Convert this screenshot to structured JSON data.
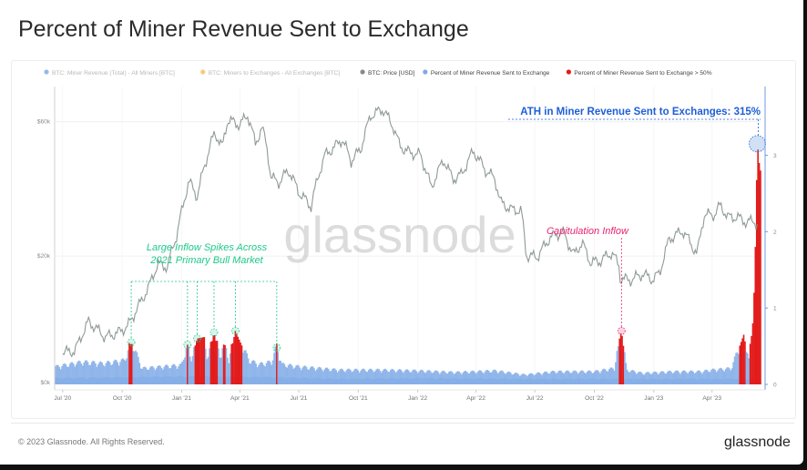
{
  "title": "Percent of Miner Revenue Sent to Exchange",
  "footer": {
    "copyright": "© 2023 Glassnode. All Rights Reserved.",
    "brand": "glassnode"
  },
  "watermark": "glassnode",
  "colors": {
    "price": "#8e9a98",
    "miner_revenue": "#5b8fd9",
    "percent_bar": "#85aee8",
    "percent_high": "#e21b1b",
    "legend_orange": "#f5a623",
    "green_annotation": "#1ec98a",
    "pink_annotation": "#e8226e",
    "ath_annotation": "#1f5fd6"
  },
  "legend": [
    {
      "label": "BTC: Miner Revenue (Total) - All Miners [BTC]",
      "color": "#4a90d9",
      "faded": true
    },
    {
      "label": "BTC: Miners to Exchanges - All Exchanges [BTC]",
      "color": "#f5a623",
      "faded": true
    },
    {
      "label": "BTC: Price [USD]",
      "color": "#8a8a8a",
      "faded": false
    },
    {
      "label": "Percent of Miner Revenue Sent to Exchange",
      "color": "#7fa8e6",
      "faded": false
    },
    {
      "label": "Percent of Miner Revenue Sent to Exchange > 50%",
      "color": "#e21b1b",
      "faded": false
    }
  ],
  "annotations": {
    "bull": [
      "Large Inflow Spikes Across",
      "2021 Primary Bull Market"
    ],
    "capitulation": "Capitulation Inflow",
    "ath": "ATH in Miner Revenue Sent to Exchanges: 315%"
  },
  "chart_data": {
    "type": "line",
    "x_tick_labels": [
      "Jul '20",
      "Oct '20",
      "Jan '21",
      "Apr '21",
      "Jul '21",
      "Oct '21",
      "Jan '22",
      "Apr '22",
      "Jul '22",
      "Oct '22",
      "Jan '23",
      "Apr '23"
    ],
    "x_tick_dates": [
      "2020-07-01",
      "2020-10-01",
      "2021-01-01",
      "2021-04-01",
      "2021-07-01",
      "2021-10-01",
      "2022-01-01",
      "2022-04-01",
      "2022-07-01",
      "2022-10-01",
      "2023-01-01",
      "2023-04-01"
    ],
    "x_range": [
      "2020-06-20",
      "2023-06-15"
    ],
    "left_axis": {
      "tick_labels": [
        "$0k",
        "$20k",
        "$60k"
      ],
      "tick_values": [
        0,
        20000,
        60000
      ],
      "scale": "log"
    },
    "right_axis": {
      "tick_labels": [
        "0",
        "1",
        "2",
        "3"
      ],
      "tick_values": [
        0,
        1,
        2,
        3
      ],
      "range": [
        0,
        3.9
      ]
    },
    "price_series": {
      "name": "BTC: Price [USD]",
      "dates": [
        "2020-07-01",
        "2020-07-20",
        "2020-08-10",
        "2020-09-05",
        "2020-09-25",
        "2020-10-10",
        "2020-10-25",
        "2020-11-10",
        "2020-11-25",
        "2020-12-10",
        "2020-12-25",
        "2021-01-05",
        "2021-01-12",
        "2021-01-25",
        "2021-02-08",
        "2021-02-21",
        "2021-03-05",
        "2021-03-13",
        "2021-04-01",
        "2021-04-13",
        "2021-04-25",
        "2021-05-05",
        "2021-05-12",
        "2021-05-19",
        "2021-06-01",
        "2021-06-15",
        "2021-07-01",
        "2021-07-20",
        "2021-08-10",
        "2021-08-25",
        "2021-09-06",
        "2021-09-20",
        "2021-10-05",
        "2021-10-20",
        "2021-11-08",
        "2021-11-25",
        "2021-12-04",
        "2021-12-20",
        "2022-01-05",
        "2022-01-22",
        "2022-02-10",
        "2022-02-24",
        "2022-03-10",
        "2022-03-28",
        "2022-04-15",
        "2022-04-30",
        "2022-05-09",
        "2022-05-25",
        "2022-06-10",
        "2022-06-18",
        "2022-07-05",
        "2022-07-25",
        "2022-08-13",
        "2022-08-30",
        "2022-09-12",
        "2022-09-25",
        "2022-10-10",
        "2022-10-28",
        "2022-11-08",
        "2022-11-10",
        "2022-11-25",
        "2022-12-15",
        "2022-12-30",
        "2023-01-10",
        "2023-01-25",
        "2023-02-15",
        "2023-03-09",
        "2023-03-20",
        "2023-04-05",
        "2023-04-14",
        "2023-04-25",
        "2023-05-10",
        "2023-05-25",
        "2023-06-05",
        "2023-06-10"
      ],
      "values": [
        9100,
        9200,
        11700,
        10300,
        10700,
        11300,
        13100,
        15300,
        18700,
        18300,
        24000,
        31500,
        37000,
        32500,
        44000,
        55000,
        48500,
        61000,
        58500,
        63500,
        50000,
        57000,
        50000,
        38000,
        36500,
        40500,
        33700,
        30000,
        45500,
        48700,
        52000,
        43500,
        48000,
        63000,
        66500,
        57000,
        49200,
        46500,
        45800,
        35000,
        44000,
        37500,
        39000,
        47300,
        40500,
        37700,
        31000,
        29300,
        29000,
        20000,
        19900,
        23300,
        24400,
        20200,
        22300,
        19000,
        19200,
        20600,
        18500,
        16700,
        16400,
        17300,
        16500,
        17400,
        23000,
        24600,
        20200,
        28000,
        28100,
        30400,
        27500,
        27500,
        26300,
        26800,
        25700
      ]
    },
    "percent_series": {
      "name": "Percent of Miner Revenue Sent to Exchange",
      "threshold": 0.5,
      "dates": [
        "2020-06-20",
        "2020-08-01",
        "2020-09-01",
        "2020-10-05",
        "2020-10-15",
        "2020-11-01",
        "2020-12-01",
        "2021-01-01",
        "2021-01-10",
        "2021-01-15",
        "2021-01-25",
        "2021-02-05",
        "2021-02-10",
        "2021-02-20",
        "2021-03-01",
        "2021-03-08",
        "2021-03-15",
        "2021-03-25",
        "2021-04-15",
        "2021-05-01",
        "2021-05-20",
        "2021-05-28",
        "2021-06-05",
        "2021-07-01",
        "2021-09-01",
        "2021-11-01",
        "2022-01-01",
        "2022-03-01",
        "2022-05-01",
        "2022-06-15",
        "2022-08-01",
        "2022-10-01",
        "2022-11-01",
        "2022-11-09",
        "2022-11-12",
        "2022-11-20",
        "2022-12-15",
        "2023-02-01",
        "2023-03-15",
        "2023-04-01",
        "2023-05-01",
        "2023-05-20",
        "2023-05-28",
        "2023-06-03",
        "2023-06-06",
        "2023-06-08",
        "2023-06-10",
        "2023-06-12",
        "2023-06-14"
      ],
      "values": [
        0.22,
        0.28,
        0.26,
        0.3,
        0.55,
        0.2,
        0.22,
        0.24,
        0.52,
        0.3,
        0.6,
        0.62,
        0.3,
        0.68,
        0.35,
        0.55,
        0.3,
        0.7,
        0.3,
        0.25,
        0.28,
        0.48,
        0.25,
        0.22,
        0.18,
        0.18,
        0.17,
        0.15,
        0.17,
        0.12,
        0.16,
        0.16,
        0.2,
        0.6,
        0.7,
        0.18,
        0.14,
        0.16,
        0.16,
        0.18,
        0.2,
        0.65,
        0.3,
        0.8,
        1.4,
        2.2,
        3.15,
        3.0,
        2.8
      ]
    },
    "miner_revenue_series": {
      "name": "BTC: Miner Revenue (Total) - All Miners [BTC]",
      "dates": [
        "2020-06-20",
        "2020-10-01",
        "2021-01-01",
        "2021-06-01",
        "2021-09-01",
        "2022-01-01",
        "2022-06-01",
        "2022-10-01",
        "2023-01-01",
        "2023-06-14"
      ],
      "values": [
        0.08,
        0.09,
        0.1,
        0.09,
        0.07,
        0.08,
        0.07,
        0.07,
        0.07,
        0.07
      ]
    },
    "legend_position": "top",
    "grid": true
  }
}
